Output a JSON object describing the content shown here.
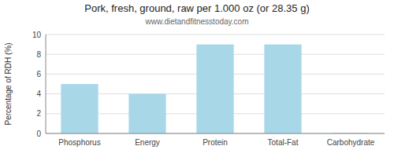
{
  "chart_data": {
    "type": "bar",
    "title": "Pork, fresh, ground, raw per 1.000 oz (or 28.35 g)",
    "subtitle": "www.dietandfitnesstoday.com",
    "categories": [
      "Phosphorus",
      "Energy",
      "Protein",
      "Total-Fat",
      "Carbohydrate"
    ],
    "values": [
      5.0,
      4.0,
      9.0,
      9.0,
      0.05
    ],
    "color": "#a8d8e8",
    "ylabel": "Percentage of RDH (%)",
    "ylim": [
      0,
      10
    ],
    "yticks": [
      0,
      2,
      4,
      6,
      8,
      10
    ],
    "grid": true
  }
}
